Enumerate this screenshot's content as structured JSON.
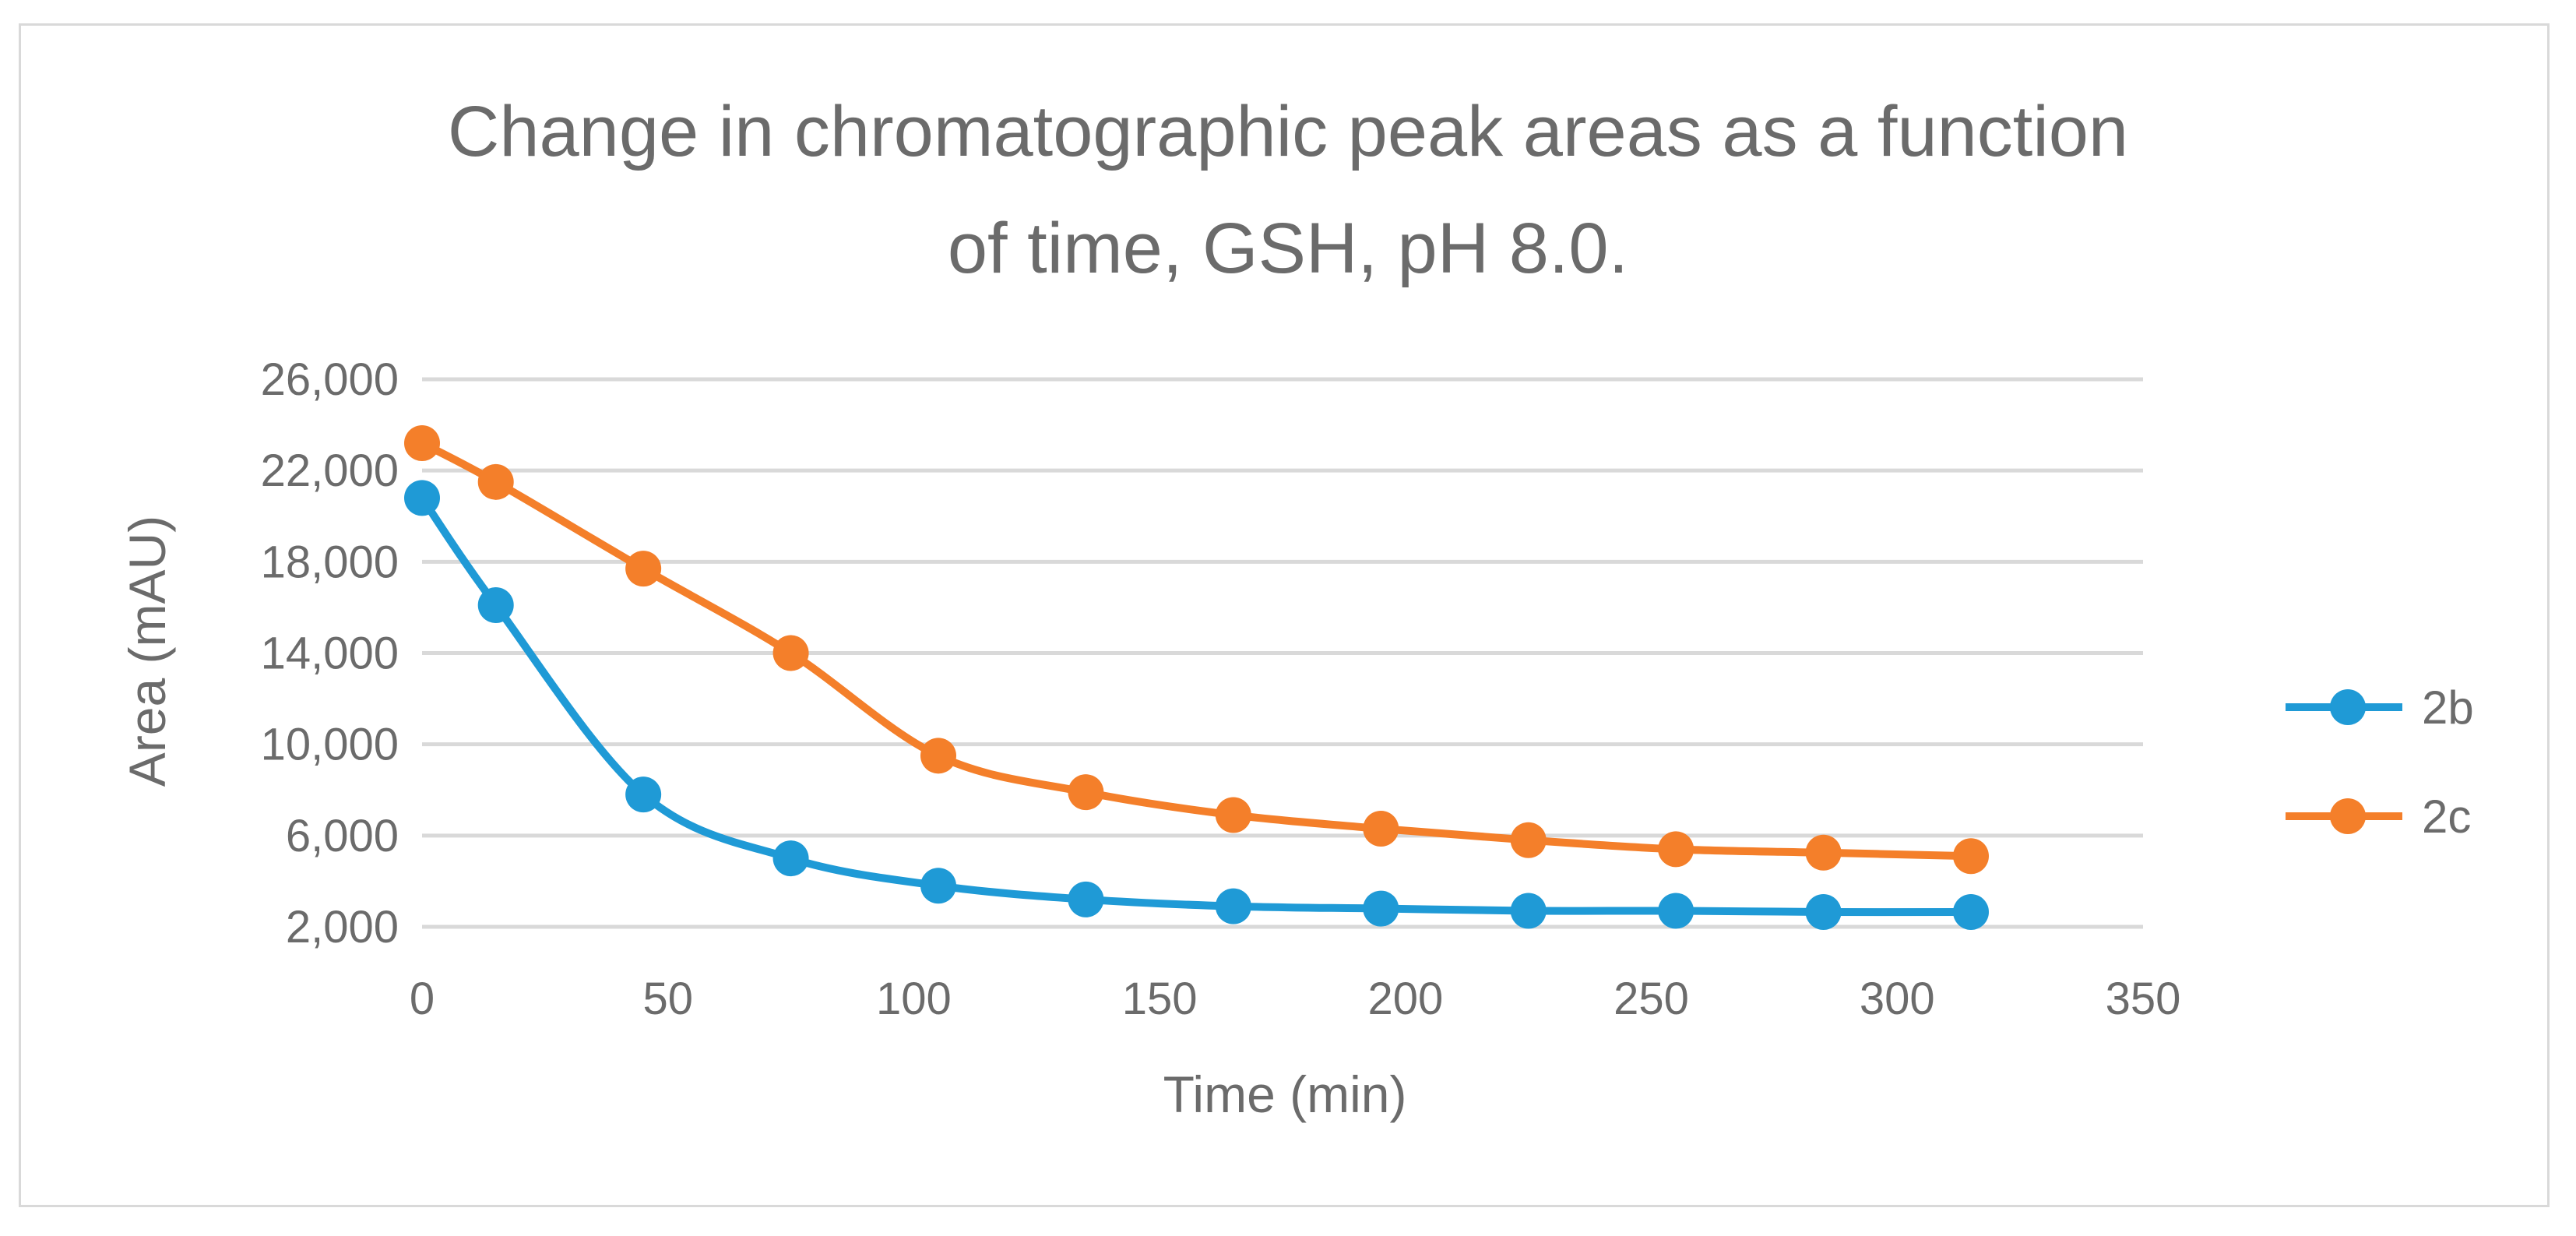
{
  "chart_data": {
    "type": "line",
    "smooth": true,
    "title_lines": [
      "Change in chromatographic peak areas as a function",
      "of time, GSH, pH 8.0."
    ],
    "xlabel": "Time (min)",
    "ylabel": "Area (mAU)",
    "xlim": [
      0,
      350
    ],
    "ylim": [
      2000,
      26000
    ],
    "x_ticks": [
      0,
      50,
      100,
      150,
      200,
      250,
      300,
      350
    ],
    "x_tick_labels": [
      "0",
      "50",
      "100",
      "150",
      "200",
      "250",
      "300",
      "350"
    ],
    "y_ticks": [
      2000,
      6000,
      10000,
      14000,
      18000,
      22000,
      26000
    ],
    "y_tick_labels": [
      "2,000",
      "6,000",
      "10,000",
      "14,000",
      "18,000",
      "22,000",
      "26,000"
    ],
    "grid": "horizontal",
    "legend_position": "right",
    "x": [
      0,
      15,
      45,
      75,
      105,
      135,
      165,
      195,
      225,
      255,
      285,
      315
    ],
    "series": [
      {
        "name": "2b",
        "color": "#1f9ad6",
        "values": [
          20800,
          16100,
          7800,
          5000,
          3800,
          3200,
          2900,
          2800,
          2700,
          2700,
          2650,
          2650
        ]
      },
      {
        "name": "2c",
        "color": "#f47f2a",
        "values": [
          23200,
          21500,
          17700,
          14000,
          9500,
          7900,
          6900,
          6300,
          5800,
          5400,
          5250,
          5100
        ]
      }
    ]
  }
}
